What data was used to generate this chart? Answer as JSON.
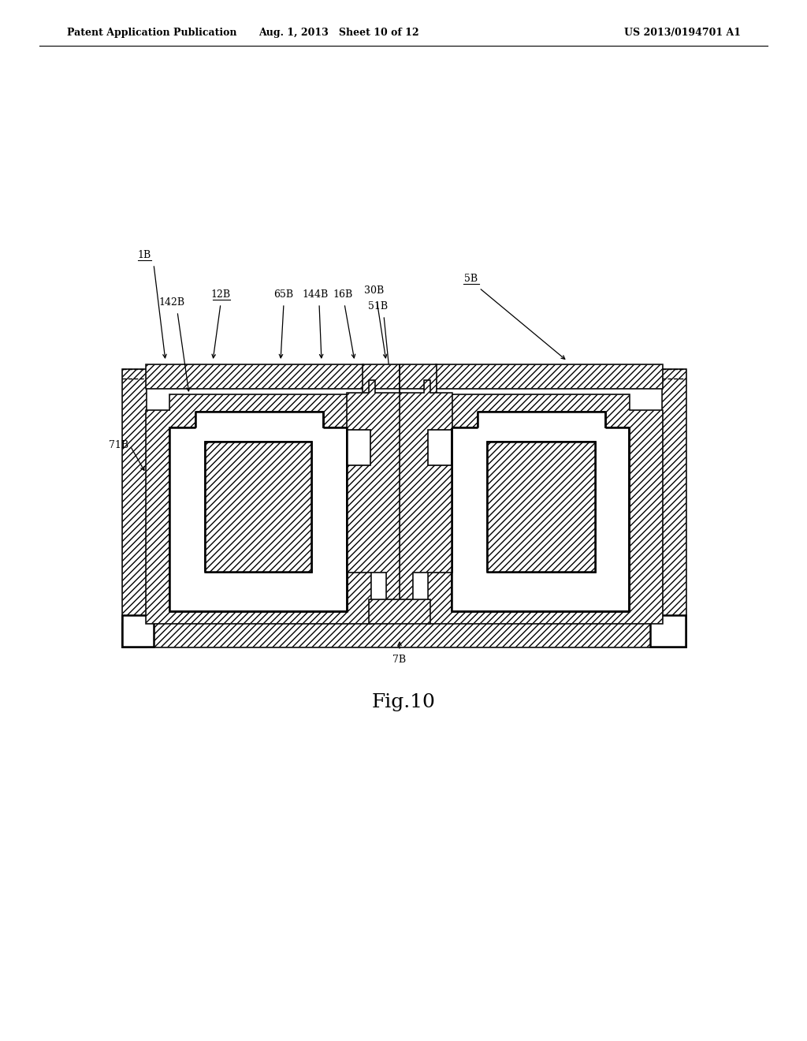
{
  "bg_color": "#ffffff",
  "line_color": "#000000",
  "header_left": "Patent Application Publication",
  "header_mid": "Aug. 1, 2013   Sheet 10 of 12",
  "header_right": "US 2013/0194701 A1",
  "fig_label": "Fig.10"
}
